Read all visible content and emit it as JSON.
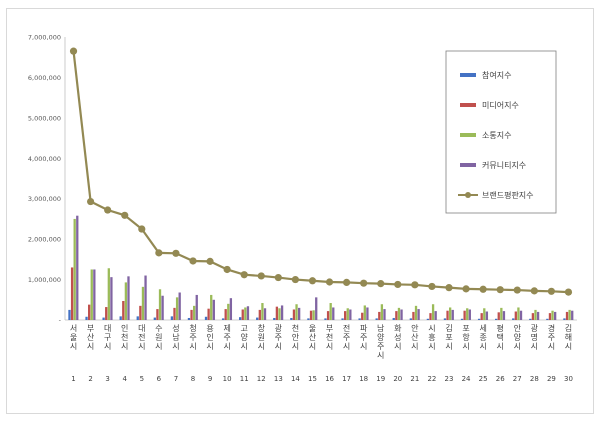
{
  "chart_data": {
    "type": "bar",
    "title": "",
    "xlabel": "",
    "ylabel": "",
    "ylim": [
      0,
      7000000
    ],
    "y_ticks": [
      "-",
      "1,000,000",
      "2,000,000",
      "3,000,000",
      "4,000,000",
      "5,000,000",
      "6,000,000",
      "7,000,000"
    ],
    "grid": false,
    "legend_position": "top-right",
    "rank_labels": [
      "1",
      "2",
      "3",
      "4",
      "5",
      "6",
      "7",
      "8",
      "9",
      "10",
      "11",
      "12",
      "13",
      "14",
      "15",
      "16",
      "17",
      "18",
      "19",
      "20",
      "21",
      "22",
      "23",
      "24",
      "25",
      "26",
      "27",
      "28",
      "29",
      "30"
    ],
    "categories": [
      "서울시",
      "부산시",
      "대구시",
      "인천시",
      "대전시",
      "수원시",
      "성남시",
      "청주시",
      "용인시",
      "제주시",
      "고양시",
      "창원시",
      "광주시",
      "천안시",
      "울산시",
      "부천시",
      "전주시",
      "파주시",
      "남양주시",
      "화성시",
      "안산시",
      "시흥시",
      "김포시",
      "포항시",
      "세종시",
      "평택시",
      "안양시",
      "광명시",
      "경주시",
      "김해시"
    ],
    "series": [
      {
        "name": "참여지수",
        "color": "#4472c4",
        "type": "bar",
        "values": [
          250000,
          80000,
          60000,
          90000,
          90000,
          60000,
          90000,
          50000,
          80000,
          40000,
          70000,
          60000,
          50000,
          50000,
          40000,
          40000,
          40000,
          40000,
          40000,
          50000,
          40000,
          30000,
          40000,
          30000,
          30000,
          30000,
          40000,
          30000,
          30000,
          40000
        ]
      },
      {
        "name": "미디어지수",
        "color": "#c0504d",
        "type": "bar",
        "values": [
          1300000,
          380000,
          320000,
          470000,
          350000,
          270000,
          300000,
          250000,
          280000,
          270000,
          260000,
          250000,
          330000,
          260000,
          230000,
          220000,
          220000,
          180000,
          200000,
          220000,
          200000,
          170000,
          230000,
          230000,
          170000,
          190000,
          210000,
          170000,
          170000,
          200000
        ]
      },
      {
        "name": "소통지수",
        "color": "#9bbb59",
        "type": "bar",
        "values": [
          2500000,
          1250000,
          1280000,
          930000,
          820000,
          760000,
          560000,
          350000,
          620000,
          400000,
          310000,
          420000,
          290000,
          390000,
          240000,
          420000,
          290000,
          360000,
          390000,
          300000,
          350000,
          390000,
          310000,
          290000,
          290000,
          300000,
          310000,
          250000,
          230000,
          250000
        ]
      },
      {
        "name": "커뮤니티지수",
        "color": "#8064a2",
        "type": "bar",
        "values": [
          2580000,
          1250000,
          1060000,
          1080000,
          1100000,
          600000,
          680000,
          620000,
          500000,
          540000,
          340000,
          290000,
          360000,
          300000,
          560000,
          310000,
          260000,
          310000,
          270000,
          260000,
          270000,
          220000,
          250000,
          260000,
          210000,
          220000,
          230000,
          200000,
          200000,
          230000
        ]
      },
      {
        "name": "브랜드평판지수",
        "color": "#938953",
        "type": "line",
        "values": [
          6650000,
          2930000,
          2720000,
          2590000,
          2250000,
          1660000,
          1650000,
          1460000,
          1450000,
          1250000,
          1120000,
          1090000,
          1050000,
          1000000,
          970000,
          940000,
          930000,
          910000,
          900000,
          880000,
          870000,
          830000,
          800000,
          770000,
          760000,
          750000,
          740000,
          720000,
          710000,
          690000
        ]
      }
    ]
  }
}
